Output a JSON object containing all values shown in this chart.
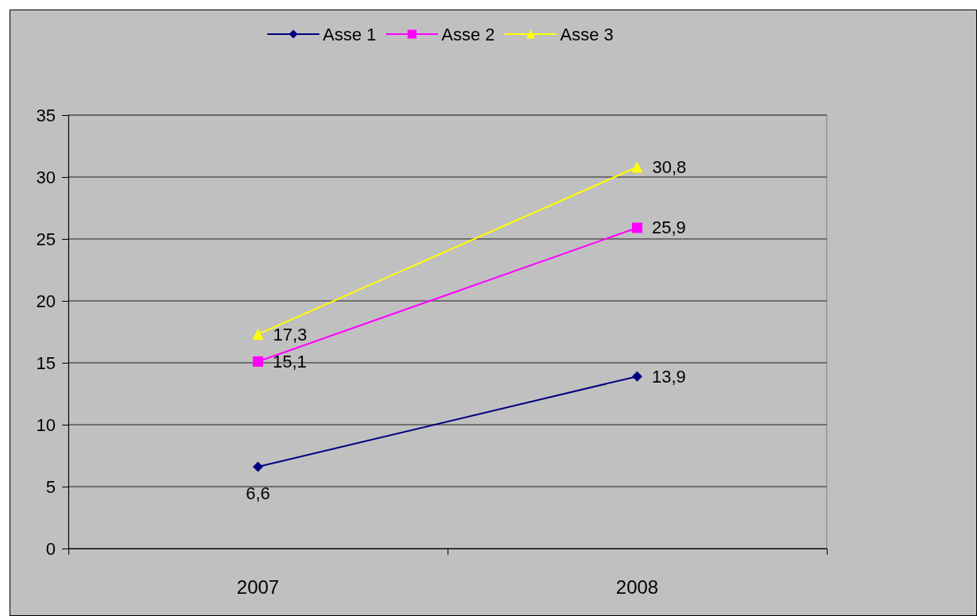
{
  "chart_data": {
    "type": "line",
    "categories": [
      "2007",
      "2008"
    ],
    "series": [
      {
        "name": "Asse 1",
        "color": "#000080",
        "marker": "diamond",
        "values": [
          6.6,
          13.9
        ],
        "value_labels": [
          "6,6",
          "13,9"
        ]
      },
      {
        "name": "Asse 2",
        "color": "#ff00ff",
        "marker": "square",
        "values": [
          15.1,
          25.9
        ],
        "value_labels": [
          "15,1",
          "25,9"
        ]
      },
      {
        "name": "Asse 3",
        "color": "#ffff00",
        "marker": "triangle",
        "values": [
          17.3,
          30.8
        ],
        "value_labels": [
          "17,3",
          "30,8"
        ]
      }
    ],
    "ylim": [
      0,
      35
    ],
    "yticks": [
      0,
      5,
      10,
      15,
      20,
      25,
      30,
      35
    ],
    "grid": "y",
    "legend": "top",
    "line_style": "solid"
  }
}
